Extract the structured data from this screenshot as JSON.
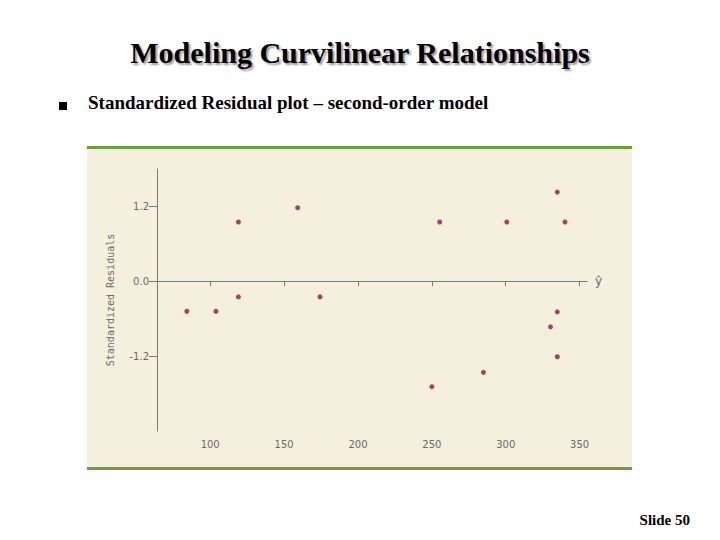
{
  "page": {
    "title": "Modeling Curvilinear Relationships",
    "bullet": "Standardized Residual plot – second-order model",
    "footer": "Slide 50"
  },
  "chart_data": {
    "type": "scatter",
    "x_label": "ŷ",
    "y_label": "Standardized Residuals",
    "x": [
      84.2,
      103.9,
      119.1,
      119.1,
      159.2,
      174.3,
      250.0,
      255.3,
      284.9,
      300.7,
      330.3,
      334.9,
      334.9,
      334.9,
      340.1
    ],
    "values": [
      -0.48,
      -0.48,
      0.95,
      -0.25,
      1.18,
      -0.25,
      -1.69,
      0.95,
      -1.46,
      0.95,
      -0.73,
      1.43,
      -0.49,
      -1.21,
      0.95
    ],
    "color": "#8b1a3a",
    "marker": "circle",
    "xlim": [
      64,
      355
    ],
    "xticks": [
      100,
      150,
      200,
      250,
      300,
      350
    ],
    "ylim": [
      -2.4,
      1.8
    ],
    "yticks": [
      -1.2,
      {
        "value": 0,
        "label": "0.0"
      },
      1.2
    ],
    "grid": false
  }
}
